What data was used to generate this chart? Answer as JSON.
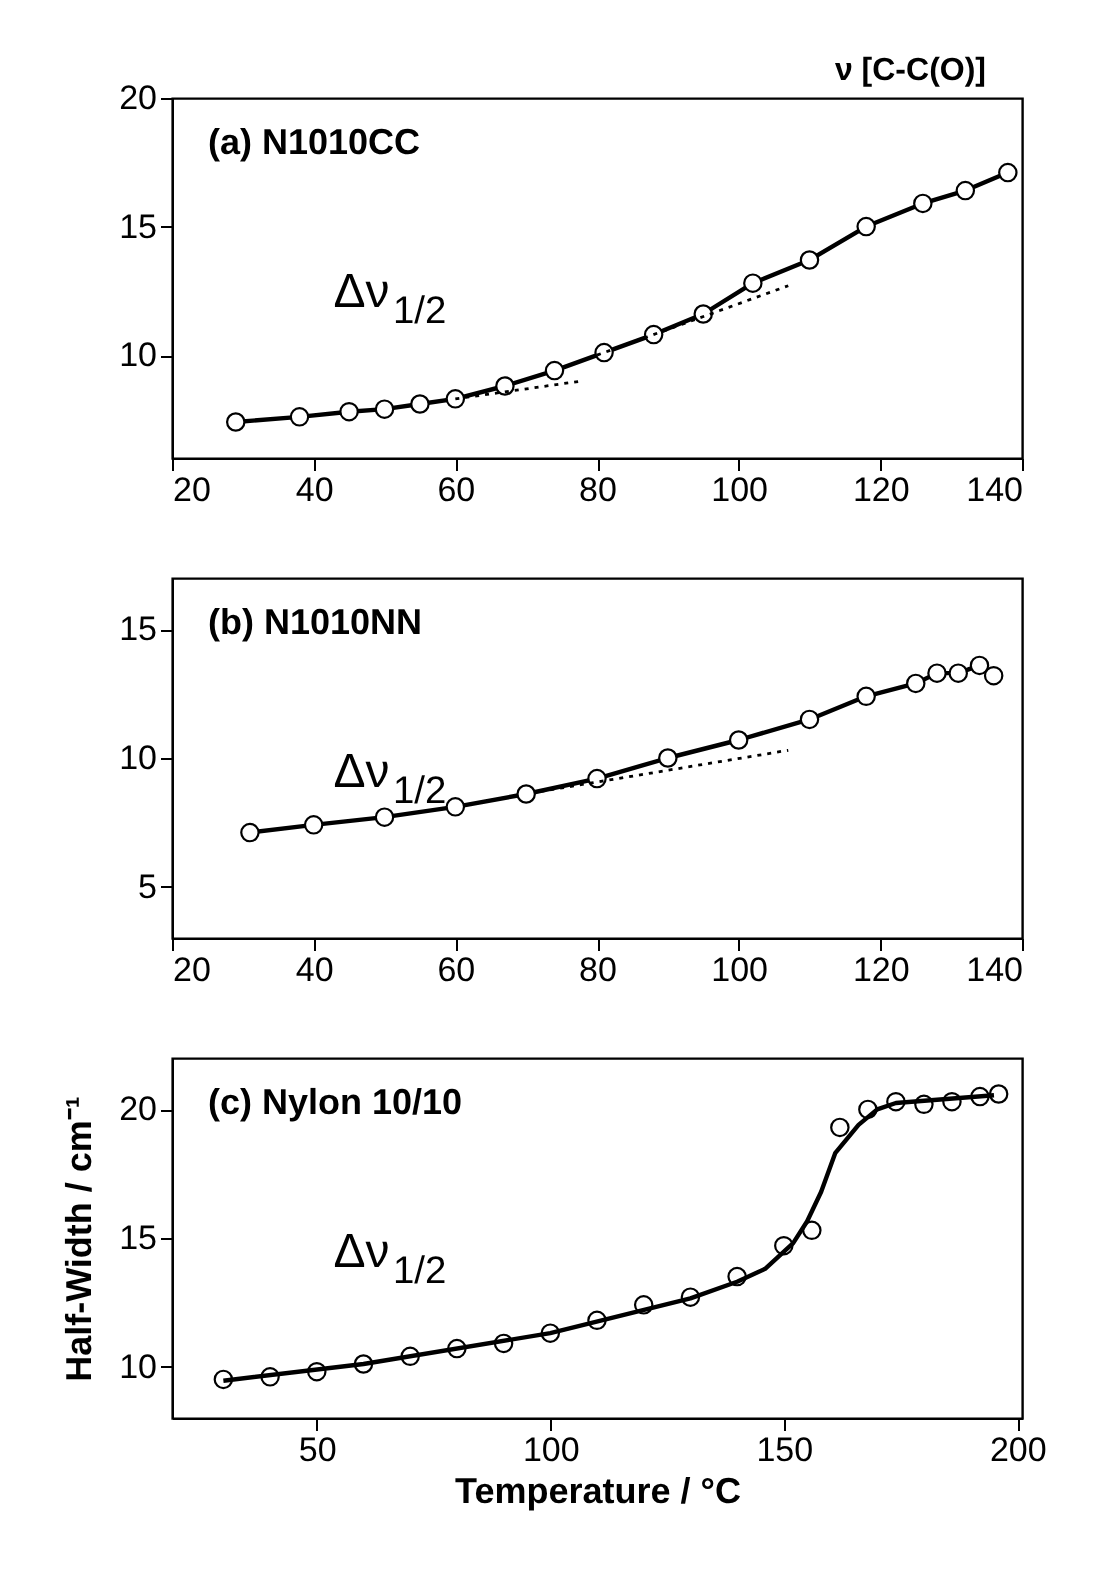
{
  "chart_data": [
    {
      "type": "line",
      "title": "(a)  N1010CC",
      "annotations": [
        "Δν$_{1/2}$",
        "ν [C-C(O)]"
      ],
      "xlim": [
        20,
        140
      ],
      "xticks": [
        20,
        40,
        60,
        80,
        100,
        120,
        140
      ],
      "ylim": [
        6,
        20
      ],
      "yticks": [
        10,
        15,
        20
      ],
      "grid": false,
      "marker": "circle",
      "series": [
        {
          "color": "#000000",
          "x": [
            29,
            38,
            45,
            50,
            55,
            60,
            67,
            74,
            81,
            88,
            95,
            102,
            110,
            118,
            126,
            132,
            138
          ],
          "values": [
            7.4,
            7.6,
            7.8,
            7.9,
            8.1,
            8.3,
            8.8,
            9.4,
            10.1,
            10.8,
            11.6,
            12.8,
            13.7,
            15.0,
            15.9,
            16.4,
            17.1
          ]
        },
        {
          "color": "#000000",
          "marker": "none",
          "line_style": "dotted",
          "x": [
            60,
            78
          ],
          "values": [
            8.3,
            9.0
          ]
        },
        {
          "color": "#000000",
          "marker": "none",
          "line_style": "dotted",
          "x": [
            80,
            107
          ],
          "values": [
            10.0,
            12.7
          ]
        }
      ]
    },
    {
      "type": "line",
      "title": "(b)  N1010NN",
      "annotations": [
        "Δν$_{1/2}$"
      ],
      "xlim": [
        20,
        140
      ],
      "xticks": [
        20,
        40,
        60,
        80,
        100,
        120,
        140
      ],
      "ylim": [
        3,
        17
      ],
      "yticks": [
        5,
        10,
        15
      ],
      "grid": false,
      "marker": "circle",
      "series": [
        {
          "color": "#000000",
          "x": [
            31,
            40,
            50,
            60,
            70,
            80,
            90,
            100,
            110,
            118,
            125,
            128,
            131,
            134,
            136
          ],
          "values": [
            7.1,
            7.4,
            7.7,
            8.1,
            8.6,
            9.2,
            10.0,
            10.7,
            11.5,
            12.4,
            12.9,
            13.3,
            13.3,
            13.6,
            13.2
          ]
        },
        {
          "color": "#000000",
          "marker": "none",
          "line_style": "dotted",
          "x": [
            72,
            107
          ],
          "values": [
            8.7,
            10.3
          ]
        }
      ]
    },
    {
      "type": "scatter",
      "title": "(c)  Nylon 10/10",
      "annotations": [
        "Δν$_{1/2}$"
      ],
      "xlabel": "Temperature / °C",
      "ylabel": "Half-Width / cm⁻¹",
      "xlim": [
        19,
        201
      ],
      "xticks": [
        50,
        100,
        150,
        200
      ],
      "ylim": [
        8,
        22
      ],
      "yticks": [
        10,
        15,
        20
      ],
      "grid": false,
      "marker": "circle",
      "series": [
        {
          "color": "#000000",
          "x": [
            30,
            40,
            50,
            60,
            70,
            80,
            90,
            100,
            110,
            120,
            130,
            140,
            150,
            156,
            162,
            168,
            174,
            180,
            186,
            192,
            196
          ],
          "values": [
            9.5,
            9.6,
            9.8,
            10.1,
            10.4,
            10.7,
            10.9,
            11.3,
            11.8,
            12.4,
            12.7,
            13.5,
            14.7,
            15.3,
            19.3,
            20.0,
            20.3,
            20.2,
            20.3,
            20.5,
            20.6
          ]
        },
        {
          "type": "line",
          "color": "#000000",
          "marker": "none",
          "line_style": "solid",
          "x": [
            30,
            60,
            100,
            130,
            140,
            146,
            152,
            155,
            158,
            161,
            166,
            170,
            174,
            195
          ],
          "values": [
            9.45,
            10.1,
            11.3,
            12.65,
            13.3,
            13.8,
            14.8,
            15.65,
            16.8,
            18.3,
            19.4,
            20.0,
            20.25,
            20.55
          ]
        }
      ]
    }
  ]
}
